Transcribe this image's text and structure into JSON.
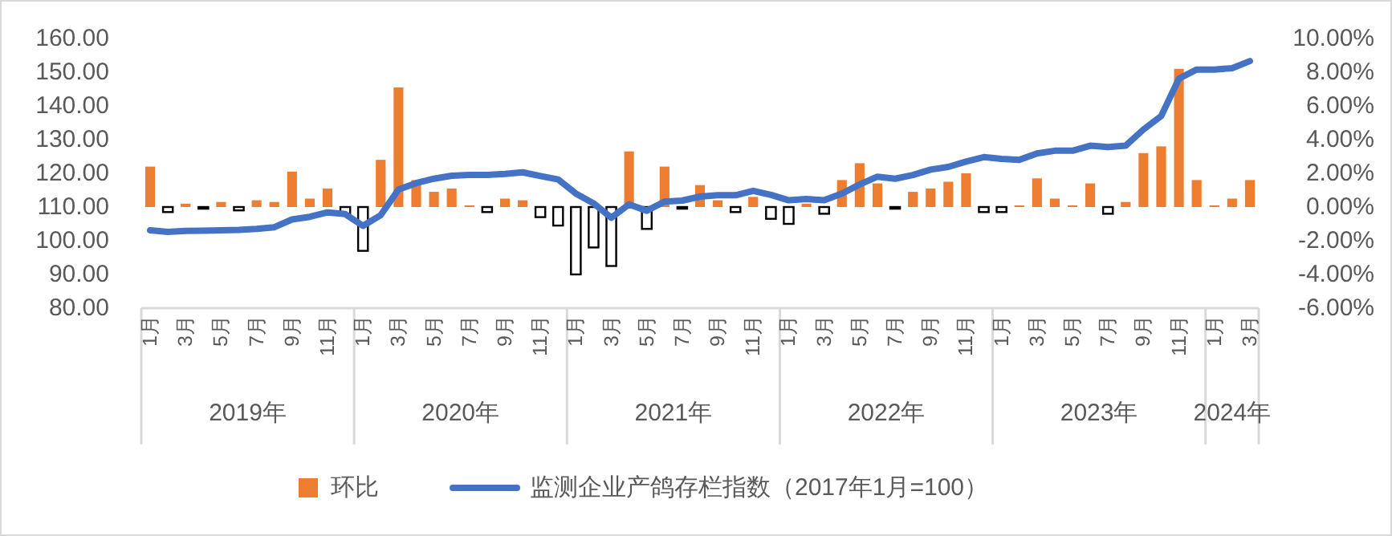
{
  "chart_data": {
    "type": "bar",
    "categories": [
      "1月",
      null,
      "3月",
      null,
      "5月",
      null,
      "7月",
      null,
      "9月",
      null,
      "11月",
      null,
      "1月",
      null,
      "3月",
      null,
      "5月",
      null,
      "7月",
      null,
      "9月",
      null,
      "11月",
      null,
      "1月",
      null,
      "3月",
      null,
      "5月",
      null,
      "7月",
      null,
      "9月",
      null,
      "11月",
      null,
      "1月",
      null,
      "3月",
      null,
      "5月",
      null,
      "7月",
      null,
      "9月",
      null,
      "11月",
      null,
      "1月",
      null,
      "3月",
      null,
      "5月",
      null,
      "7月",
      null,
      "9月",
      null,
      "11月",
      null,
      "1月",
      null,
      "3月"
    ],
    "series": [
      {
        "name": "环比",
        "axis": "y2",
        "color": "#ed7d31",
        "colors": [
          "#ed7d31",
          "#ffffff",
          "#ed7d31",
          "#ffffff",
          "#ed7d31",
          "#ffffff",
          "#ed7d31",
          "#ed7d31",
          "#ed7d31",
          "#ed7d31",
          "#ed7d31",
          "#ffffff",
          "#ffffff",
          "#ed7d31",
          "#ed7d31",
          "#ed7d31",
          "#ed7d31",
          "#ed7d31",
          "#ed7d31",
          "#ffffff",
          "#ed7d31",
          "#ed7d31",
          "#ffffff",
          "#ffffff",
          "#ffffff",
          "#ffffff",
          "#ffffff",
          "#ed7d31",
          "#ffffff",
          "#ed7d31",
          "#ffffff",
          "#ed7d31",
          "#ed7d31",
          "#ffffff",
          "#ed7d31",
          "#ffffff",
          "#ffffff",
          "#ed7d31",
          "#ffffff",
          "#ed7d31",
          "#ed7d31",
          "#ed7d31",
          "#ffffff",
          "#ed7d31",
          "#ed7d31",
          "#ed7d31",
          "#ed7d31",
          "#ffffff",
          "#ffffff",
          "#ed7d31",
          "#ed7d31",
          "#ed7d31",
          "#ed7d31",
          "#ed7d31",
          "#ffffff",
          "#ed7d31",
          "#ed7d31",
          "#ed7d31",
          "#ed7d31",
          "#ed7d31",
          "#ed7d31",
          "#ed7d31",
          "#ed7d31"
        ],
        "values": [
          2.4,
          -0.3,
          0.2,
          -0.1,
          0.3,
          -0.2,
          0.4,
          0.3,
          2.1,
          0.5,
          1.1,
          -0.4,
          -2.6,
          2.8,
          7.1,
          1.6,
          0.9,
          1.1,
          0.1,
          -0.3,
          0.5,
          0.4,
          -0.6,
          -1.1,
          -4.0,
          -2.4,
          -3.5,
          3.3,
          -1.3,
          2.4,
          -0.1,
          1.3,
          0.4,
          -0.3,
          0.6,
          -0.7,
          -1.0,
          0.2,
          -0.4,
          1.6,
          2.6,
          1.4,
          -0.1,
          0.9,
          1.1,
          1.5,
          2.0,
          -0.3,
          -0.3,
          0.1,
          1.7,
          0.5,
          0.1,
          1.4,
          -0.4,
          0.3,
          3.2,
          3.6,
          8.2,
          1.6,
          0.1,
          0.5,
          1.6
        ]
      },
      {
        "name": "监测企业产鸽存栏指数（2017年1月=100）",
        "type": "line",
        "axis": "y",
        "color": "#4472c4",
        "values": [
          103.1,
          102.6,
          102.9,
          103.0,
          103.1,
          103.2,
          103.5,
          104.0,
          106.3,
          107.1,
          108.4,
          107.9,
          104.4,
          107.6,
          115.2,
          117.1,
          118.4,
          119.3,
          119.5,
          119.5,
          119.8,
          120.3,
          119.2,
          118.2,
          114.0,
          111.1,
          106.8,
          110.8,
          108.9,
          111.6,
          111.9,
          113.1,
          113.5,
          113.5,
          114.8,
          113.6,
          112.0,
          112.4,
          112.0,
          114.0,
          116.7,
          119.0,
          118.4,
          119.5,
          121.1,
          121.9,
          123.5,
          124.8,
          124.3,
          124.0,
          125.9,
          126.7,
          126.7,
          128.2,
          127.8,
          128.2,
          133.0,
          137.0,
          148.1,
          150.8,
          150.8,
          151.2,
          153.3
        ]
      }
    ],
    "ylim": [
      80,
      160
    ],
    "yticks": [
      {
        "value": 80,
        "label": "80.00"
      },
      {
        "value": 90,
        "label": "90.00"
      },
      {
        "value": 100,
        "label": "100.00"
      },
      {
        "value": 110,
        "label": "110.00"
      },
      {
        "value": 120,
        "label": "120.00"
      },
      {
        "value": 130,
        "label": "130.00"
      },
      {
        "value": 140,
        "label": "140.00"
      },
      {
        "value": 150,
        "label": "150.00"
      },
      {
        "value": 160,
        "label": "160.00"
      }
    ],
    "y2lim": [
      -6,
      10
    ],
    "y2ticks": [
      {
        "value": -6,
        "label": "-6.00%"
      },
      {
        "value": -4,
        "label": "-4.00%"
      },
      {
        "value": -2,
        "label": "-2.00%"
      },
      {
        "value": 0,
        "label": "0.00%"
      },
      {
        "value": 2,
        "label": "2.00%"
      },
      {
        "value": 4,
        "label": "4.00%"
      },
      {
        "value": 6,
        "label": "6.00%"
      },
      {
        "value": 8,
        "label": "8.00%"
      },
      {
        "value": 10,
        "label": "10.00%"
      }
    ],
    "annotations": [
      "2019年",
      "2020年",
      "2021年",
      "2022年",
      "2023年",
      "2024年"
    ],
    "legend": "bottom",
    "grid": false
  }
}
